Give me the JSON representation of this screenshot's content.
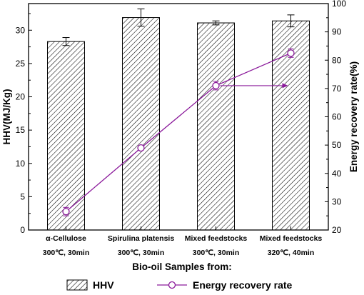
{
  "chart_data": {
    "type": "bar",
    "categories": [
      {
        "line1": "α-Cellulose",
        "line2": "300℃, 30min"
      },
      {
        "line1": "Spirulina platensis",
        "line2": "300℃, 30min"
      },
      {
        "line1": "Mixed feedstocks",
        "line2": "300℃, 30min"
      },
      {
        "line1": "Mixed feedstocks",
        "line2": "320℃, 40min"
      }
    ],
    "xlabel": "Bio-oil Samples from:",
    "ylabel_left": "HHV(MJ/Kg)",
    "ylabel_right": "Energy recovery rate(%)",
    "ylim_left": [
      0,
      34
    ],
    "ylim_right": [
      20,
      100
    ],
    "yticks_left": [
      0,
      5,
      10,
      15,
      20,
      25,
      30
    ],
    "yticks_right": [
      20,
      30,
      40,
      50,
      60,
      70,
      80,
      90,
      100
    ],
    "grid": false,
    "legend_position": "bottom",
    "series": [
      {
        "name": "HHV",
        "kind": "bar",
        "axis": "left",
        "pattern": "diagonal-hatch",
        "values": [
          28.3,
          31.9,
          31.1,
          31.4
        ],
        "errors": [
          0.6,
          1.3,
          0.3,
          0.9
        ]
      },
      {
        "name": "Energy recovery rate",
        "kind": "line",
        "axis": "right",
        "color": "#8b1a9b",
        "marker": "open-circle",
        "values": [
          26.5,
          49.0,
          71.0,
          82.5
        ],
        "errors": [
          1.5,
          0.8,
          1.5,
          1.5
        ]
      }
    ],
    "annotation_arrow": {
      "from": 71.0,
      "to": 71.0,
      "axis": "right",
      "color": "#8b1a9b"
    }
  }
}
